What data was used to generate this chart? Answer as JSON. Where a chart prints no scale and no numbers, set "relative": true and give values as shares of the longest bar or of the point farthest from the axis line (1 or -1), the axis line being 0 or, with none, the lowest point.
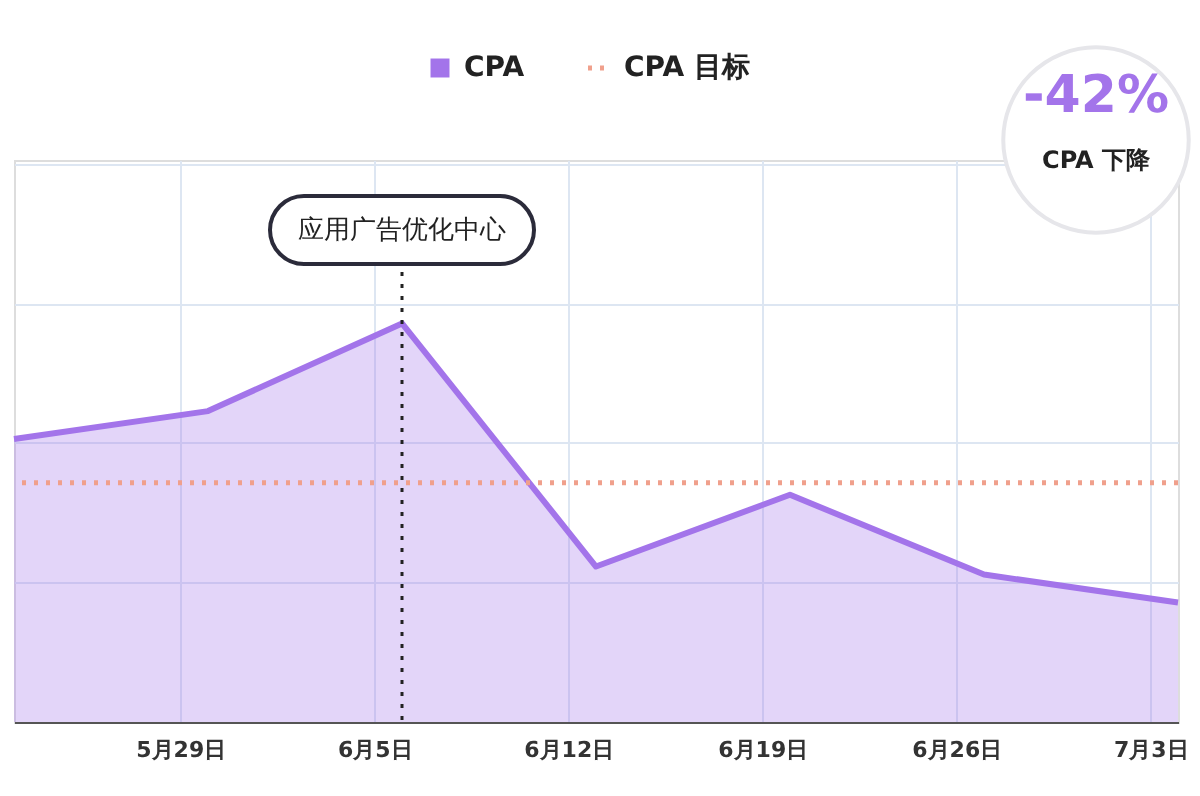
{
  "chart_data": {
    "type": "area",
    "relative": true,
    "x": [
      "--05-23",
      "--05-30",
      "--06-06",
      "--06-13",
      "--06-20",
      "--06-27",
      "--07-04"
    ],
    "xlim": [
      "--05-23",
      "--07-04"
    ],
    "xticks": [
      {
        "value": "--05-29",
        "label": "5月29日"
      },
      {
        "value": "--06-05",
        "label": "6月5日"
      },
      {
        "value": "--06-12",
        "label": "6月12日"
      },
      {
        "value": "--06-19",
        "label": "6月19日"
      },
      {
        "value": "--06-26",
        "label": "6月26日"
      },
      {
        "value": "--07-03",
        "label": "7月3日"
      }
    ],
    "series": [
      {
        "name": "CPA",
        "color": "#a374ea",
        "values": [
          0.71,
          0.78,
          1.0,
          0.39,
          0.57,
          0.37,
          0.3
        ]
      }
    ],
    "ref_lines": [
      {
        "axis": "y",
        "value": 0.6,
        "label": "CPA 目标",
        "color": "#f0a08c",
        "line_style": "dotted"
      },
      {
        "axis": "x",
        "value": "--06-06",
        "label": "应用广告优化中心",
        "color": "#222222",
        "line_style": "dotted"
      }
    ],
    "annotations": [
      "-42%",
      "CPA 下降"
    ],
    "grid": true,
    "legend": "top",
    "tick_labels": "x"
  }
}
